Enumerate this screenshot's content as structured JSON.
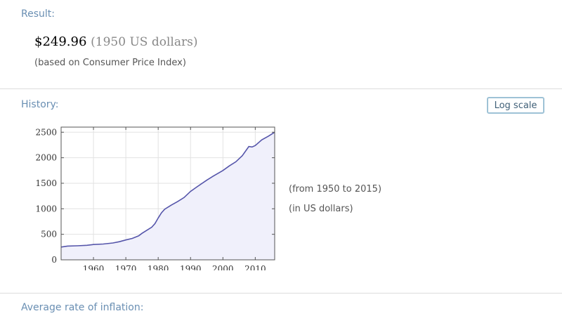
{
  "pods": {
    "result": {
      "title": "Result:",
      "value": "$249.96",
      "unit": "(1950 US dollars)",
      "note": "(based on Consumer Price Index)"
    },
    "history": {
      "title": "History:",
      "log_scale_button": "Log scale",
      "range_note": "(from 1950 to 2015)",
      "units_note": "(in US dollars)"
    },
    "inflation": {
      "title": "Average rate of inflation:"
    }
  },
  "colors": {
    "pod_title": "#6a8fb3",
    "series_line": "#5555aa",
    "series_fill": "#f0f0fb",
    "button_border": "#9ec2d6"
  },
  "chart_data": {
    "type": "area",
    "title": "",
    "xlabel": "",
    "ylabel": "",
    "xlim": [
      1950,
      2016
    ],
    "ylim": [
      0,
      2600
    ],
    "x_ticks": [
      1960,
      1970,
      1980,
      1990,
      2000,
      2010
    ],
    "y_ticks": [
      0,
      500,
      1000,
      1500,
      2000,
      2500
    ],
    "grid": true,
    "series": [
      {
        "x": [
          1950,
          1952,
          1955,
          1958,
          1960,
          1963,
          1966,
          1968,
          1970,
          1972,
          1974,
          1975,
          1976,
          1978,
          1979,
          1980,
          1981,
          1982,
          1984,
          1986,
          1988,
          1990,
          1992,
          1995,
          1997,
          2000,
          2002,
          2004,
          2006,
          2008,
          2009,
          2010,
          2012,
          2014,
          2016
        ],
        "y": [
          250,
          270,
          275,
          285,
          300,
          310,
          330,
          355,
          390,
          420,
          470,
          520,
          560,
          640,
          710,
          820,
          920,
          990,
          1070,
          1140,
          1220,
          1340,
          1430,
          1560,
          1640,
          1750,
          1840,
          1920,
          2040,
          2220,
          2210,
          2240,
          2350,
          2420,
          2500
        ]
      }
    ]
  }
}
